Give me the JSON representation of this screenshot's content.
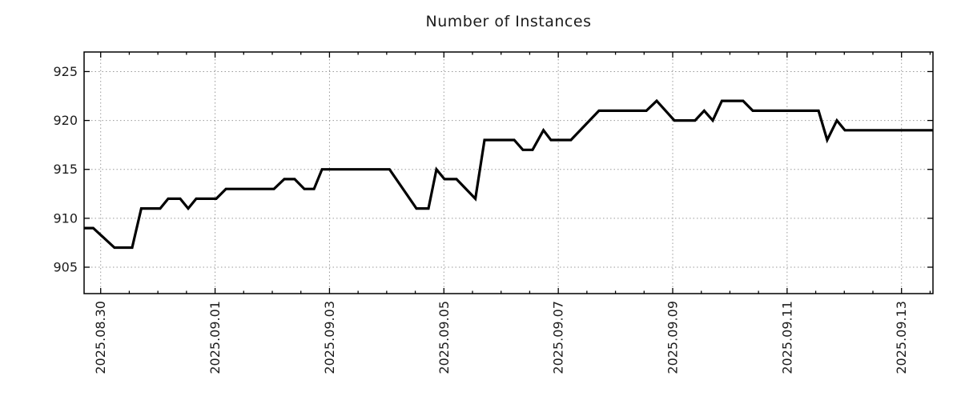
{
  "chart_data": {
    "type": "line",
    "title": "Number of Instances",
    "xlabel": "",
    "ylabel": "",
    "legend": "none",
    "grid": true,
    "line_color": "#000000",
    "grid_color": "#9a9a9a",
    "x_unit": "days since 2025-08-30 00:00",
    "xlim_days": [
      -0.29,
      14.55
    ],
    "ylim": [
      902.3,
      927.0
    ],
    "y_ticks": [
      905,
      910,
      915,
      920,
      925
    ],
    "x_ticks": [
      {
        "d": 0,
        "label": "2025.08.30"
      },
      {
        "d": 2,
        "label": "2025.09.01"
      },
      {
        "d": 4,
        "label": "2025.09.03"
      },
      {
        "d": 6,
        "label": "2025.09.05"
      },
      {
        "d": 8,
        "label": "2025.09.07"
      },
      {
        "d": 10,
        "label": "2025.09.09"
      },
      {
        "d": 12,
        "label": "2025.09.11"
      },
      {
        "d": 14,
        "label": "2025.09.13"
      }
    ],
    "minor_x_tick_step_days": 0.5,
    "points": [
      [
        -0.29,
        909
      ],
      [
        -0.13,
        909
      ],
      [
        0.24,
        907
      ],
      [
        0.55,
        907
      ],
      [
        0.71,
        911
      ],
      [
        1.04,
        911
      ],
      [
        1.18,
        912
      ],
      [
        1.39,
        912
      ],
      [
        1.53,
        911
      ],
      [
        1.67,
        912
      ],
      [
        2.02,
        912
      ],
      [
        2.19,
        913
      ],
      [
        3.03,
        913
      ],
      [
        3.21,
        914
      ],
      [
        3.39,
        914
      ],
      [
        3.56,
        913
      ],
      [
        3.73,
        913
      ],
      [
        3.87,
        915
      ],
      [
        5.05,
        915
      ],
      [
        5.52,
        911
      ],
      [
        5.73,
        911
      ],
      [
        5.87,
        915
      ],
      [
        6.01,
        914
      ],
      [
        6.22,
        914
      ],
      [
        6.55,
        912
      ],
      [
        6.71,
        918
      ],
      [
        7.23,
        918
      ],
      [
        7.38,
        917
      ],
      [
        7.55,
        917
      ],
      [
        7.74,
        919
      ],
      [
        7.87,
        918
      ],
      [
        8.22,
        918
      ],
      [
        8.71,
        921
      ],
      [
        9.54,
        921
      ],
      [
        9.72,
        922
      ],
      [
        10.03,
        920
      ],
      [
        10.39,
        920
      ],
      [
        10.55,
        921
      ],
      [
        10.7,
        920
      ],
      [
        10.86,
        922
      ],
      [
        11.23,
        922
      ],
      [
        11.4,
        921
      ],
      [
        12.55,
        921
      ],
      [
        12.7,
        918
      ],
      [
        12.87,
        920
      ],
      [
        13.01,
        919
      ],
      [
        14.55,
        919
      ]
    ]
  }
}
